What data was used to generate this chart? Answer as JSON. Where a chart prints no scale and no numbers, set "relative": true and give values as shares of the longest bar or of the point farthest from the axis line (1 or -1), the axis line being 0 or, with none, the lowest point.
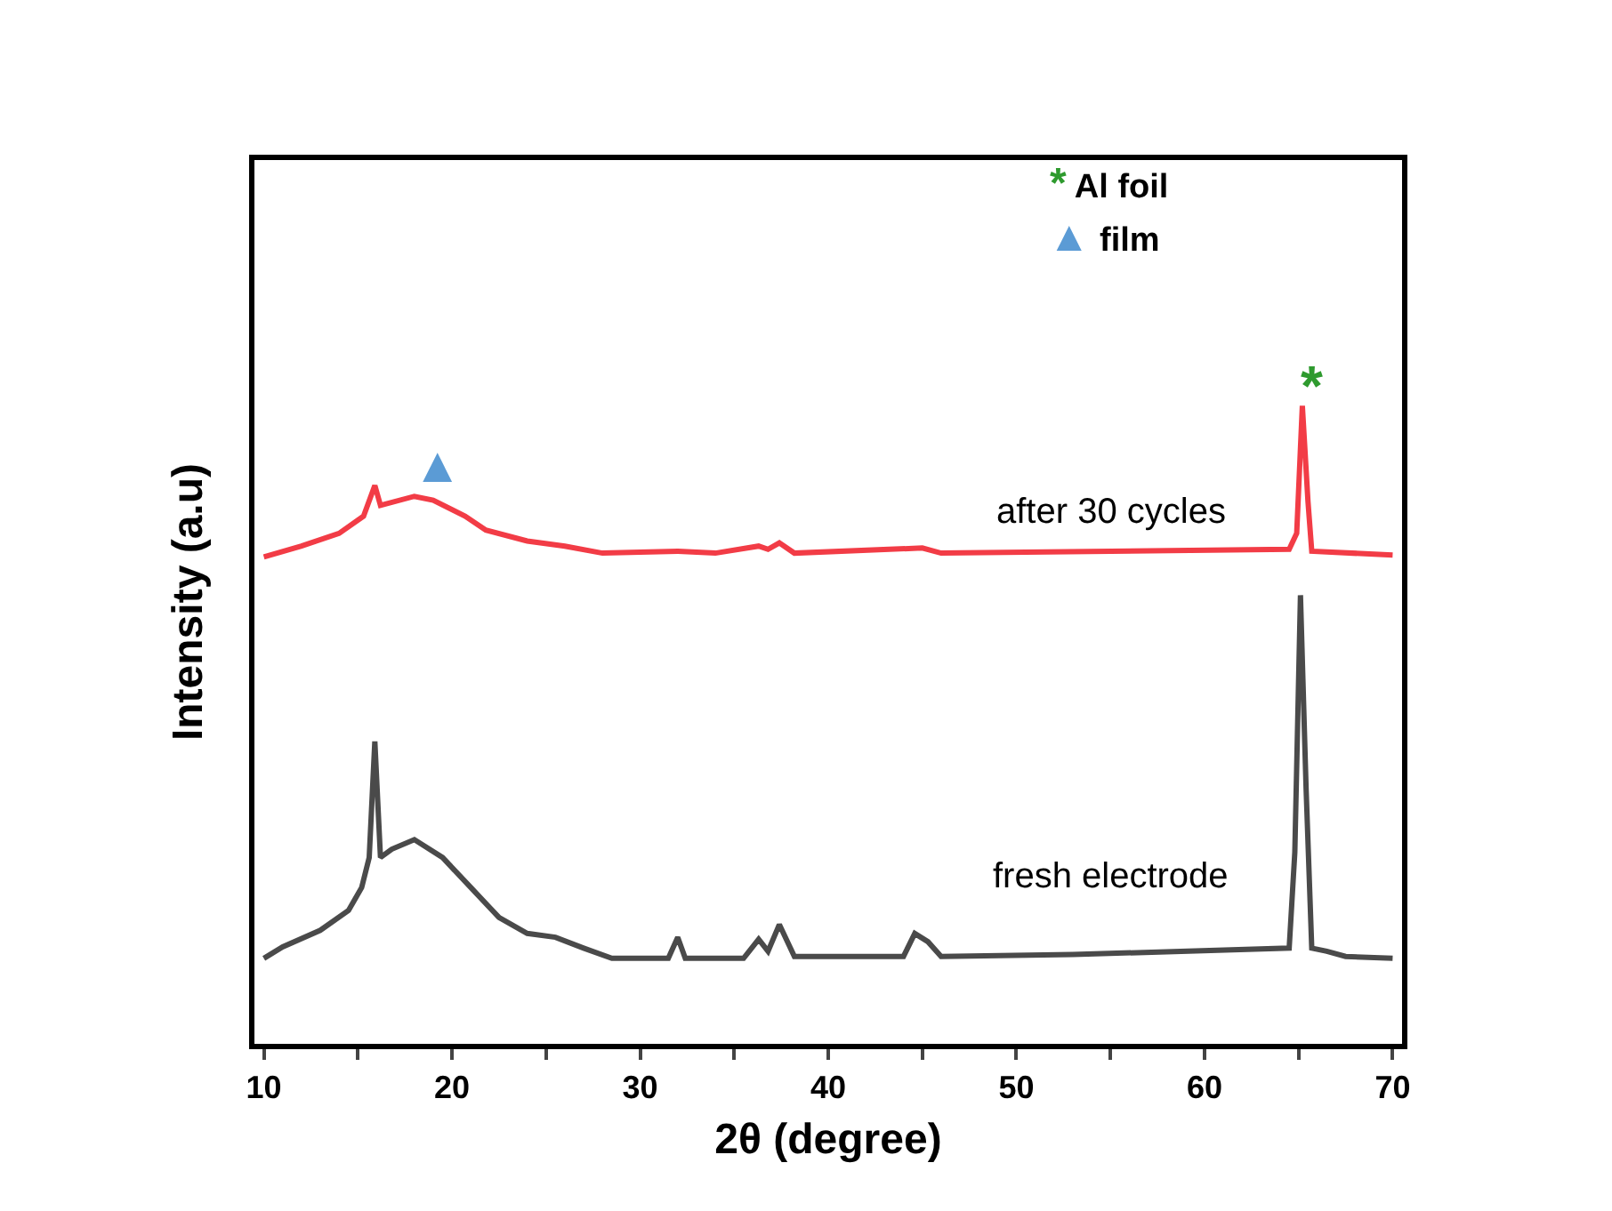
{
  "chart_data": {
    "type": "line",
    "relative": true,
    "xlabel": "2θ (degree)",
    "ylabel": "Intensity (a.u)",
    "xlim": [
      9.5,
      70.5
    ],
    "xticks": [
      10,
      {
        "value": 15,
        "label": null
      },
      20,
      {
        "value": 25,
        "label": null
      },
      30,
      {
        "value": 35,
        "label": null
      },
      40,
      {
        "value": 45,
        "label": null
      },
      50,
      {
        "value": 55,
        "label": null
      },
      60,
      {
        "value": 65,
        "label": null
      },
      70
    ],
    "tick_labels": "x",
    "grid": false,
    "marker": "none",
    "line_style": "solid",
    "series": [
      {
        "color": "#f23c46",
        "x": [
          10,
          12,
          14,
          15.3,
          15.9,
          16.2,
          18,
          19,
          20.7,
          21.8,
          24,
          26,
          28,
          32,
          34,
          36.3,
          36.8,
          37.4,
          38.2,
          45,
          46,
          64.5,
          64.9,
          65.2,
          65.5,
          65.7,
          70
        ],
        "values": [
          0.763,
          0.78,
          0.8,
          0.827,
          0.875,
          0.844,
          0.858,
          0.852,
          0.827,
          0.805,
          0.788,
          0.78,
          0.769,
          0.772,
          0.769,
          0.78,
          0.775,
          0.785,
          0.769,
          0.777,
          0.769,
          0.775,
          0.8,
          1,
          0.85,
          0.772,
          0.766
        ]
      },
      {
        "color": "#4a4a4a",
        "x": [
          10,
          11,
          13,
          14.5,
          15.2,
          15.6,
          15.9,
          16.2,
          16.8,
          18,
          19.5,
          21,
          22.5,
          24,
          25.5,
          27,
          28.5,
          31.5,
          32,
          32.4,
          35.5,
          36.3,
          36.8,
          37.4,
          38.2,
          44,
          44.6,
          45.3,
          46,
          53,
          64.5,
          64.8,
          65.1,
          65.4,
          65.7,
          66.5,
          67.5,
          70
        ],
        "values": [
          0.134,
          0.152,
          0.178,
          0.209,
          0.245,
          0.292,
          0.474,
          0.292,
          0.305,
          0.32,
          0.292,
          0.245,
          0.198,
          0.173,
          0.167,
          0.15,
          0.134,
          0.134,
          0.167,
          0.134,
          0.134,
          0.164,
          0.145,
          0.187,
          0.137,
          0.137,
          0.173,
          0.16,
          0.137,
          0.14,
          0.15,
          0.3,
          0.703,
          0.4,
          0.15,
          0.145,
          0.137,
          0.134
        ]
      }
    ],
    "annotations": [
      "after 30 cycles",
      "fresh electrode",
      "▲",
      "*",
      "* Al foil",
      "▲ film"
    ]
  }
}
